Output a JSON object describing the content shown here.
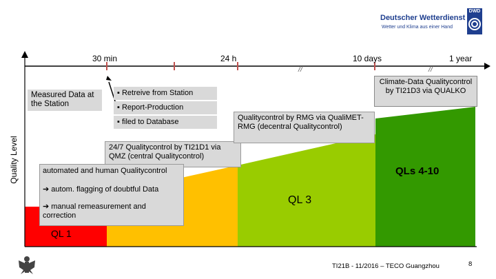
{
  "header": {
    "org_name": "Deutscher Wetterdienst",
    "org_tagline": "Wetter und Klima aus einer Hand",
    "logo_text": "DWD"
  },
  "timeline": {
    "labels": [
      "30 min",
      "24 h",
      "10 days",
      "1 year"
    ]
  },
  "axis": {
    "y_label": "Quality Level"
  },
  "boxes": {
    "measured": "Measured Data at the Station",
    "bullets": [
      "▪ Retreive from Station",
      "▪ Report-Production",
      "▪ filed to Database"
    ],
    "qmz": "24/7 Qualitycontrol by TI21D1 via QMZ (central Qualitycontrol)",
    "rmg": "Qualitycontrol by RMG via QualiMET-RMG (decentral Qualitycontrol)",
    "climate": "Climate-Data Qualitycontrol by TI21D3 via QUALKO",
    "auto_title": "automated and human Qualitycontrol",
    "auto_flag": "➔ autom. flagging of doubtful Data",
    "auto_manual": "➔ manual remeasurement and correction"
  },
  "levels": {
    "ql1": "QL 1",
    "ql3": "QL 3",
    "ql4_10": "QLs 4-10"
  },
  "footer": {
    "citation": "TI21B - 11/2016 – TECO Guangzhou",
    "page": "8"
  },
  "colors": {
    "red": "#ff0000",
    "orange": "#ffc000",
    "yellowgreen": "#99cc00",
    "green": "#339900",
    "box": "#d9d9d9",
    "tick": "#c0504d",
    "brand_blue": "#1f3f8f"
  }
}
